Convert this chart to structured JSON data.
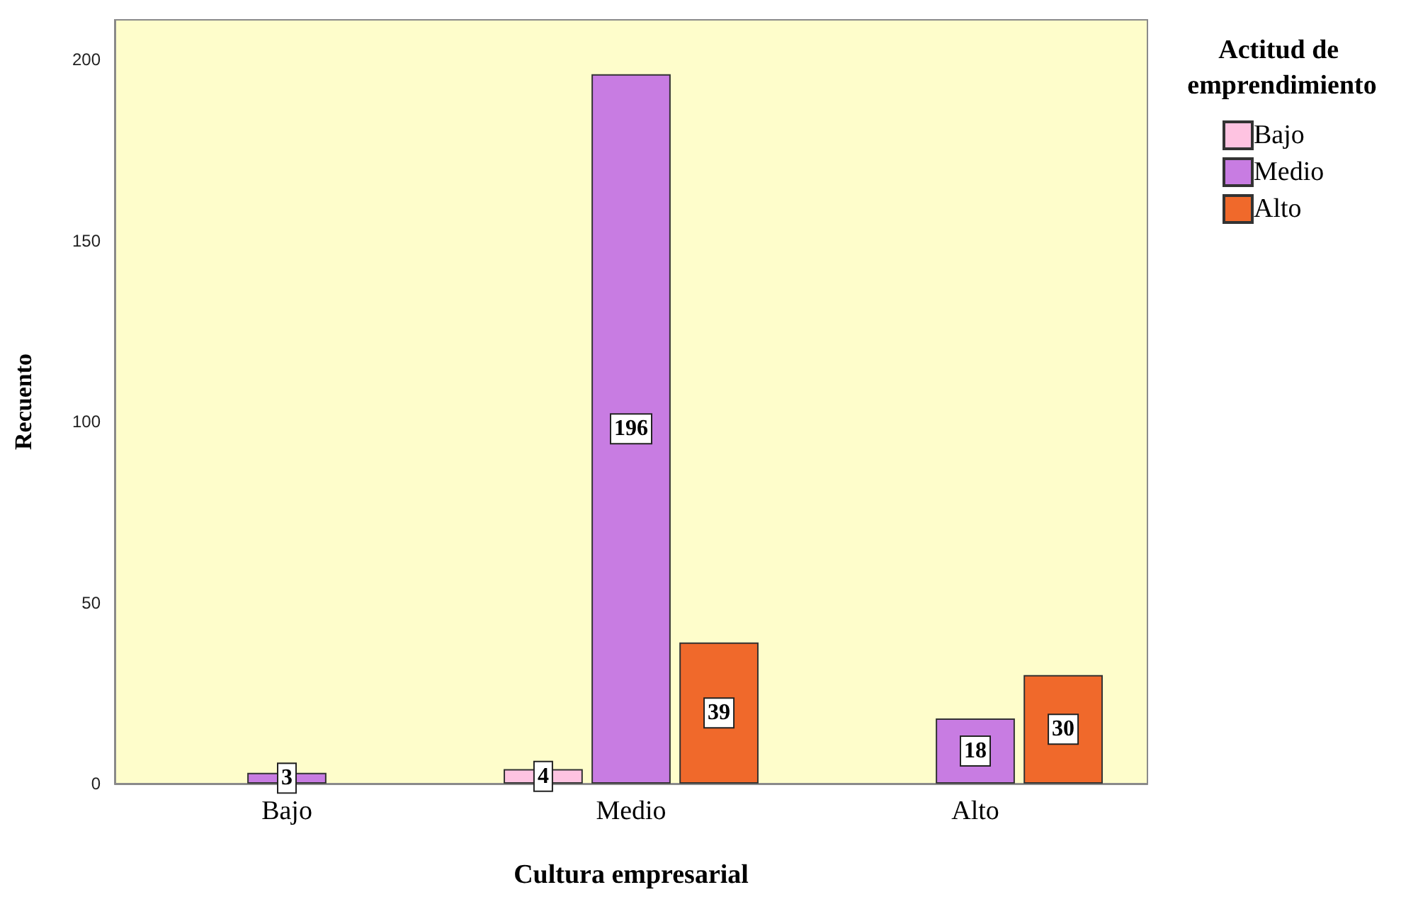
{
  "chart_data": {
    "type": "bar",
    "xlabel": "Cultura empresarial",
    "ylabel": "Recuento",
    "legend_title": "Actitud de emprendimiento",
    "categories": [
      "Bajo",
      "Medio",
      "Alto"
    ],
    "series": [
      {
        "name": "Bajo",
        "color": "#fec3e1",
        "values": [
          null,
          4,
          null
        ]
      },
      {
        "name": "Medio",
        "color": "#c87ce2",
        "values": [
          3,
          196,
          18
        ]
      },
      {
        "name": "Alto",
        "color": "#f0692b",
        "values": [
          null,
          39,
          30
        ]
      }
    ],
    "ylim": [
      0,
      211
    ],
    "yticks": [
      0,
      50,
      100,
      150,
      200
    ],
    "grid": false,
    "legend": "top right",
    "data_labels": true
  }
}
